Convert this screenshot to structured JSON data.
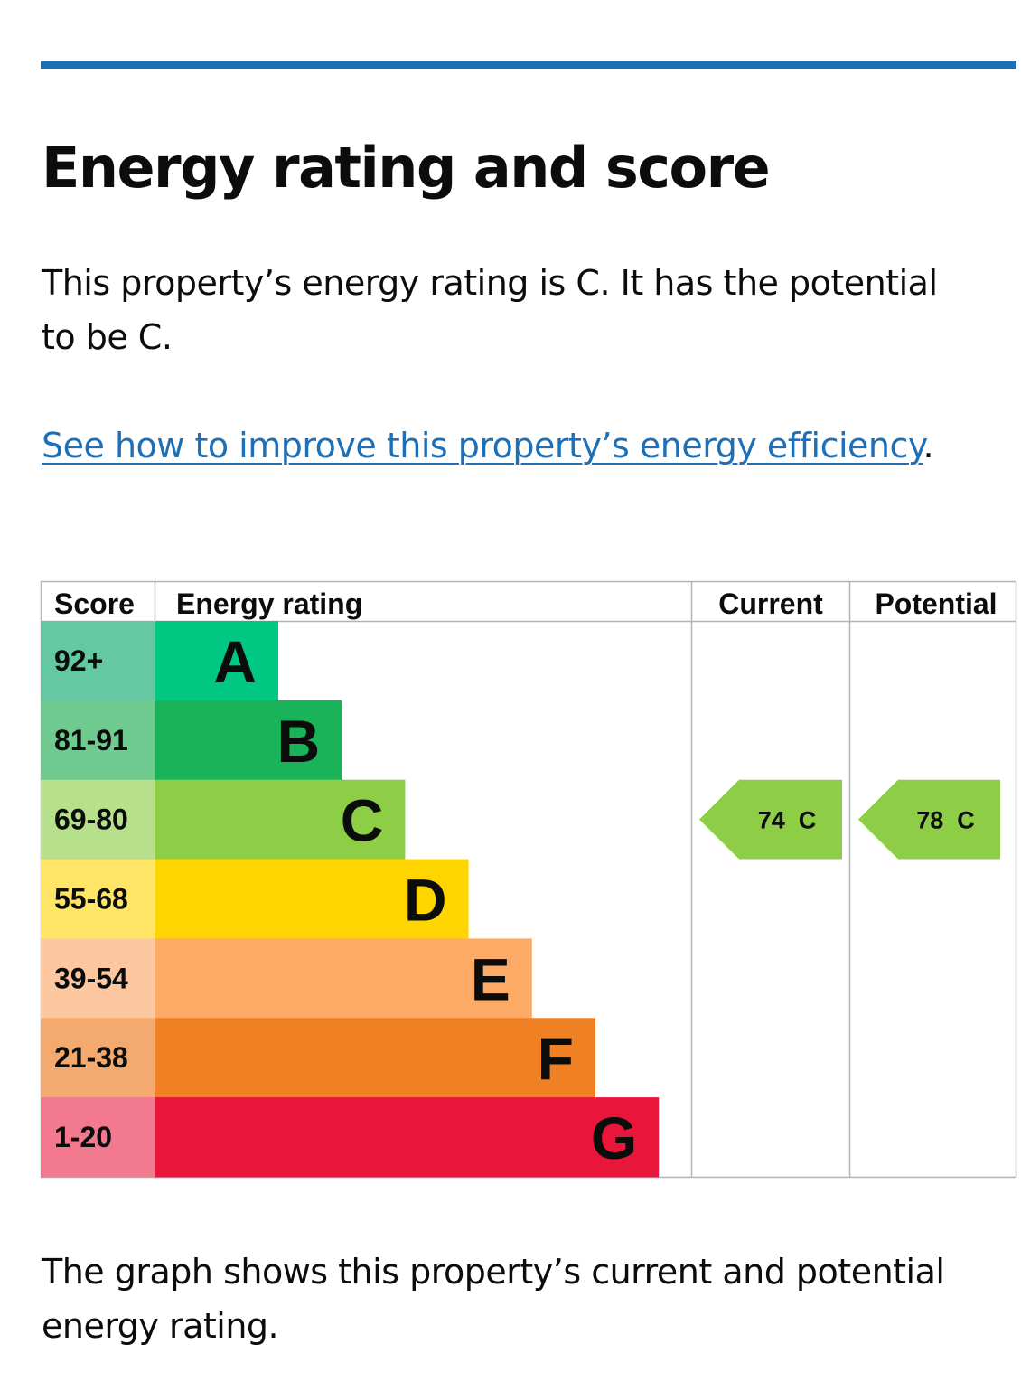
{
  "heading": "Energy rating and score",
  "intro": "This property’s energy rating is C. It has the potential to be C.",
  "improve_link": {
    "text": "See how to improve this property’s energy efficiency",
    "suffix": "."
  },
  "chart_data": {
    "type": "table",
    "headers": {
      "score": "Score",
      "rating": "Energy rating",
      "current": "Current",
      "potential": "Potential"
    },
    "bands": [
      {
        "letter": "A",
        "range": "92+",
        "color": "#00c781",
        "score_bg": "#64c8a3"
      },
      {
        "letter": "B",
        "range": "81-91",
        "color": "#19b459",
        "score_bg": "#6fcb8f"
      },
      {
        "letter": "C",
        "range": "69-80",
        "color": "#8dce46",
        "score_bg": "#b7e08d"
      },
      {
        "letter": "D",
        "range": "55-68",
        "color": "#ffd500",
        "score_bg": "#ffe566"
      },
      {
        "letter": "E",
        "range": "39-54",
        "color": "#fcaa65",
        "score_bg": "#fdc8a0"
      },
      {
        "letter": "F",
        "range": "21-38",
        "color": "#ef8023",
        "score_bg": "#f4a96f"
      },
      {
        "letter": "G",
        "range": "1-20",
        "color": "#e9153b",
        "score_bg": "#f2798e"
      }
    ],
    "current": {
      "score": 74,
      "letter": "C",
      "label": "74  C",
      "color": "#8dce46"
    },
    "potential": {
      "score": 78,
      "letter": "C",
      "label": "78  C",
      "color": "#8dce46"
    }
  },
  "footnote": "The graph shows this property’s current and potential energy rating."
}
